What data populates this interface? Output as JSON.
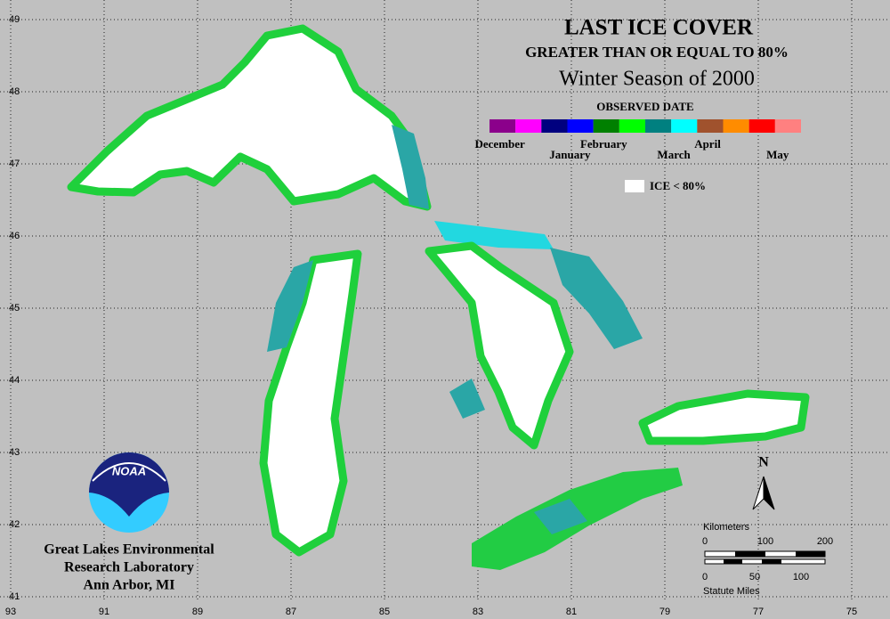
{
  "title": "LAST ICE COVER",
  "subtitle": "GREATER THAN OR EQUAL TO 80%",
  "season": "Winter Season of 2000",
  "legend": {
    "title": "OBSERVED DATE",
    "months": [
      {
        "label": "December",
        "colors": [
          "#8b008b",
          "#ff00ff"
        ]
      },
      {
        "label": "January",
        "colors": [
          "#00007f",
          "#0000ff"
        ]
      },
      {
        "label": "February",
        "colors": [
          "#008000",
          "#00ff00"
        ]
      },
      {
        "label": "March",
        "colors": [
          "#008080",
          "#00ffff"
        ]
      },
      {
        "label": "April",
        "colors": [
          "#a0522d",
          "#ff8c00"
        ]
      },
      {
        "label": "May",
        "colors": [
          "#ff0000",
          "#ff8080"
        ]
      }
    ],
    "no_ice": "ICE < 80%"
  },
  "map": {
    "latitudes": [
      49,
      48,
      47,
      46,
      45,
      44,
      43,
      42,
      41
    ],
    "longitudes": [
      93,
      91,
      89,
      87,
      85,
      83,
      81,
      79,
      77,
      75
    ]
  },
  "north": "N",
  "scale_bar": {
    "km_label": "Kilometers",
    "km_ticks": [
      "0",
      "100",
      "200"
    ],
    "mi_ticks": [
      "0",
      "50",
      "100"
    ],
    "mi_label": "Statute Miles"
  },
  "logo": "NOAA",
  "credit": [
    "Great Lakes Environmental",
    "Research Laboratory",
    "Ann Arbor, MI"
  ]
}
